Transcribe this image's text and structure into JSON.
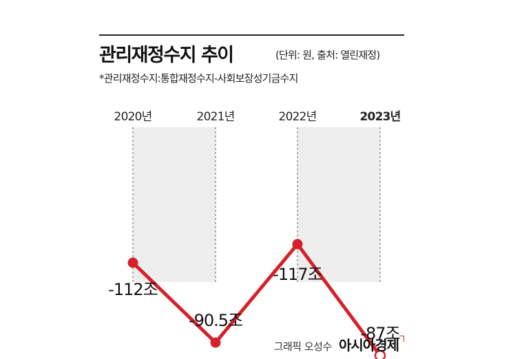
{
  "header": {
    "title": "관리재정수지 추이",
    "title_note": "(단위: 원, 출처: 열린재정)",
    "subtitle": "*관리재정수지:통합재정수지-사회보장성기금수지"
  },
  "chart_data": {
    "type": "line",
    "categories": [
      "2020년",
      "2021년",
      "2022년",
      "2023년"
    ],
    "values": [
      -112,
      -90.5,
      -117,
      -87
    ],
    "data_labels": [
      "-112조",
      "-90.5조",
      "-117조",
      "-87조"
    ],
    "unit": "조",
    "grid": true,
    "line_color": "#d6202a",
    "band_color": "#eeeeee"
  },
  "credit": {
    "graphic_by": "그래픽 오성수",
    "brand": "아시아경제"
  }
}
